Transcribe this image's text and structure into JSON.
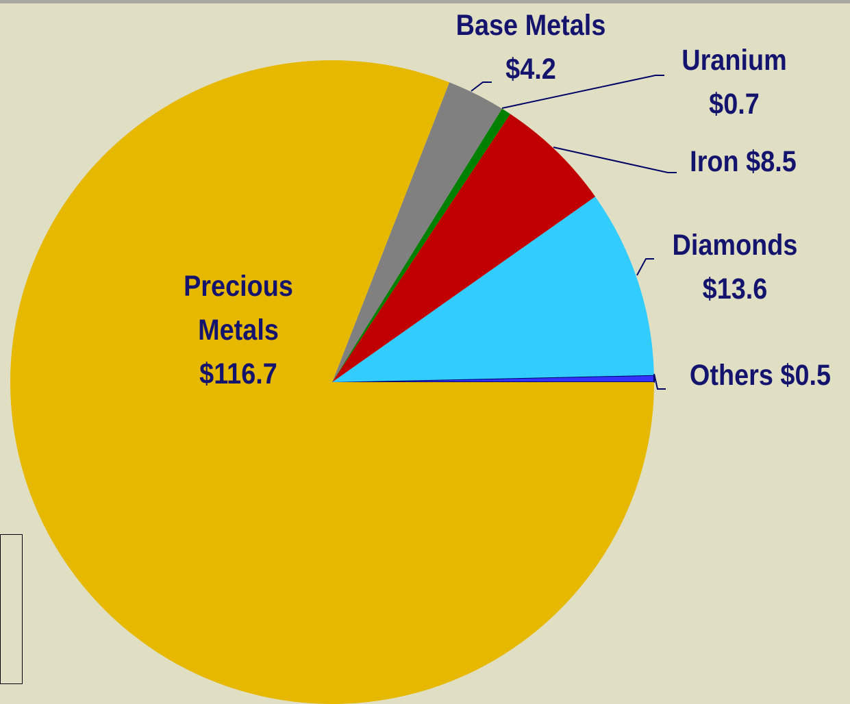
{
  "chart_data": {
    "type": "pie",
    "categories": [
      "Others",
      "Diamonds",
      "Iron",
      "Uranium",
      "Base Metals",
      "Precious Metals"
    ],
    "values": [
      0.5,
      13.6,
      8.5,
      0.7,
      4.2,
      116.7
    ],
    "value_labels": [
      "$0.5",
      "$13.6",
      "$8.5",
      "$0.7",
      "$4.2",
      "$116.7"
    ],
    "colors": [
      "#3333ff",
      "#33ccff",
      "#c00000",
      "#008000",
      "#808080",
      "#e6b800"
    ]
  }
}
